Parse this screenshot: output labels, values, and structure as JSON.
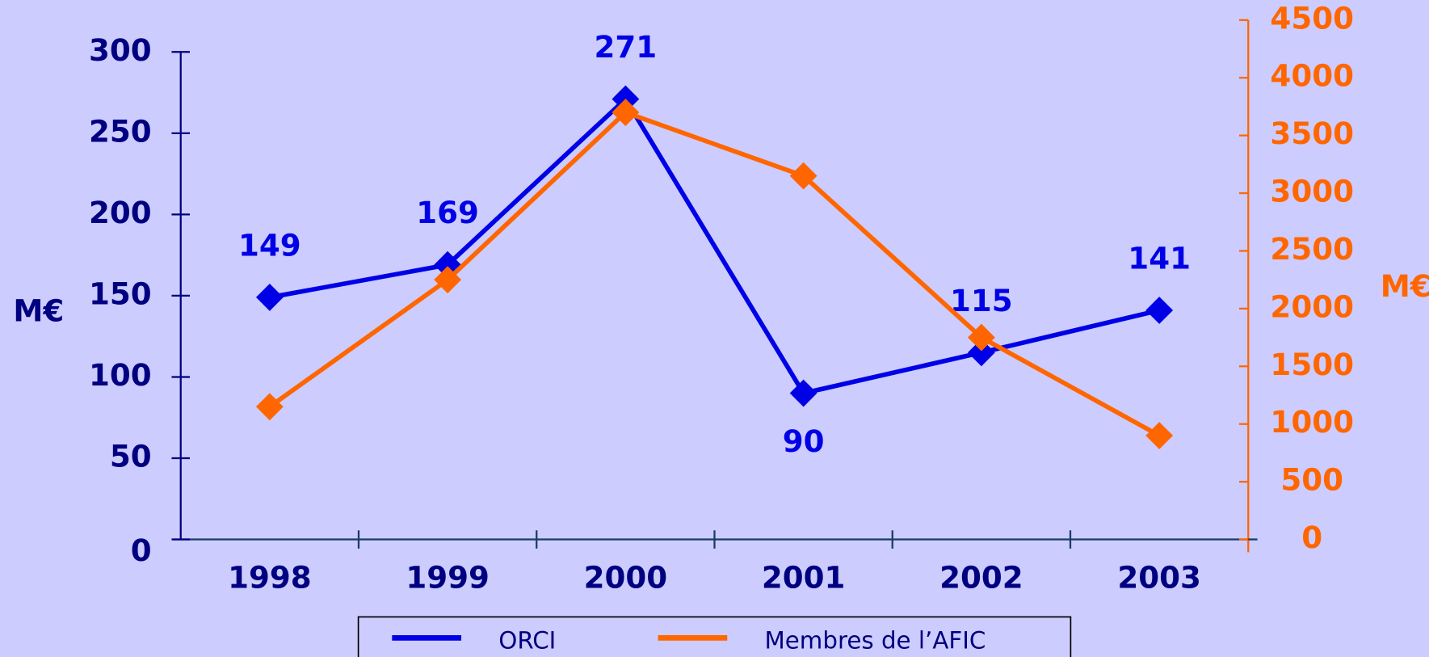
{
  "chart_data": {
    "type": "line",
    "categories": [
      "1998",
      "1999",
      "2000",
      "2001",
      "2002",
      "2003"
    ],
    "series": [
      {
        "name": "ORCI",
        "color": "#0000e6",
        "values": [
          149,
          169,
          271,
          90,
          115,
          141
        ]
      },
      {
        "name": "Membres de  l’AFIC",
        "color": "#ff6600",
        "axis": "y2",
        "values": [
          1150,
          2250,
          3700,
          3150,
          1750,
          900
        ]
      }
    ],
    "y_label": "M€",
    "y2_label": "M€",
    "ylim": [
      0,
      300
    ],
    "yticks": [
      0,
      50,
      100,
      150,
      200,
      250,
      300
    ],
    "y2lim": [
      0,
      4500
    ],
    "y2ticks": [
      0,
      500,
      1000,
      1500,
      2000,
      2500,
      3000,
      3500,
      4000,
      4500
    ],
    "data_labels_series": 0,
    "legend": "bottom"
  }
}
